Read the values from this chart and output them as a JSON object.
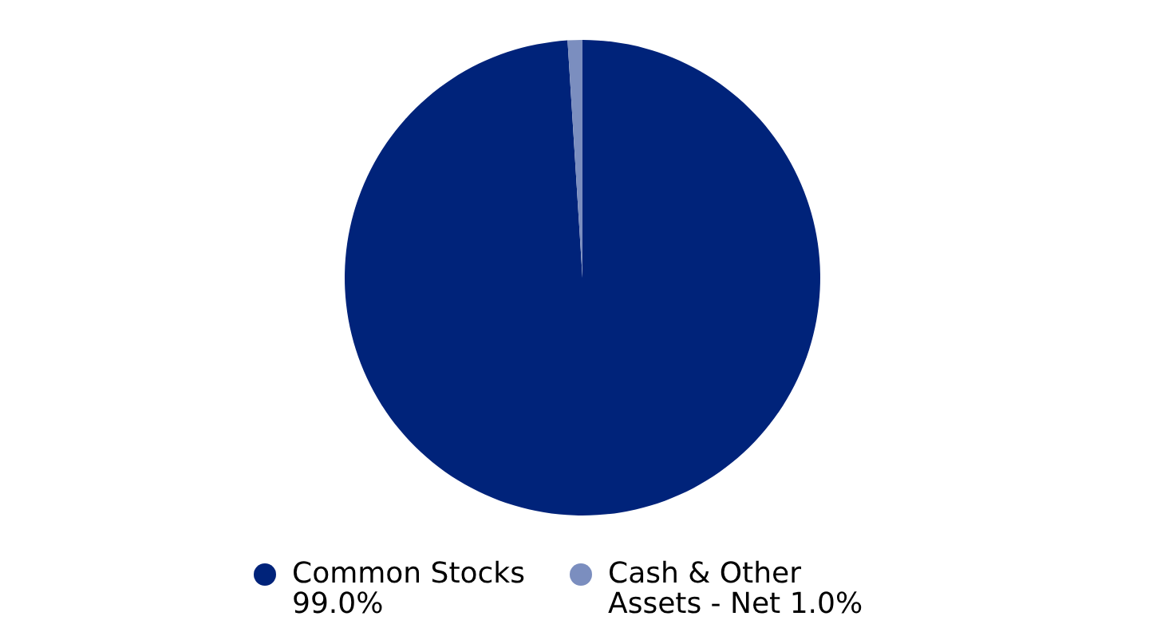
{
  "chart_data": {
    "type": "pie",
    "categories": [
      "Common Stocks",
      "Cash & Other Assets - Net"
    ],
    "values": [
      99.0,
      1.0
    ],
    "colors": [
      "#00237a",
      "#7b8ebf"
    ],
    "value_labels": [
      "99.0%",
      "1.0%"
    ],
    "legend": "bottom"
  }
}
